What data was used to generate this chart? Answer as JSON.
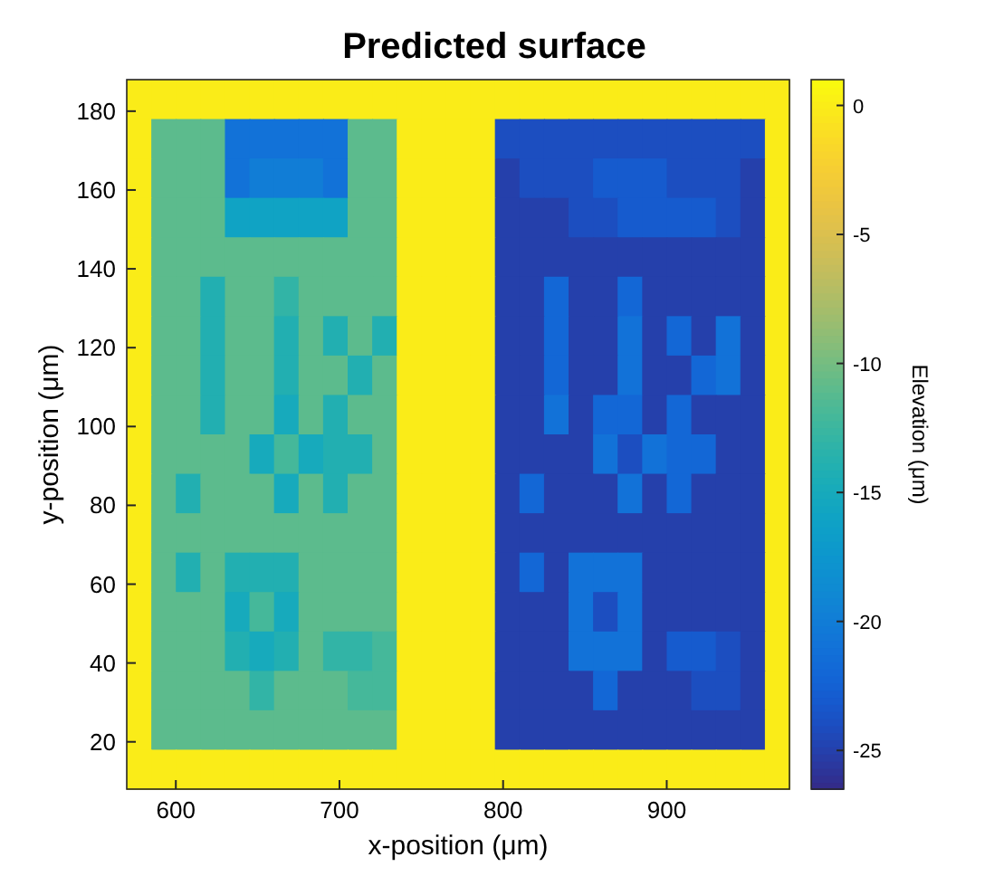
{
  "chart_data": {
    "type": "heatmap",
    "title": "Predicted surface",
    "xlabel": "x-position  (μm)",
    "ylabel": "y-position  (μm)",
    "clabel": "Elevation  (μm)",
    "xlim": [
      570,
      975
    ],
    "ylim": [
      8,
      188
    ],
    "xticks": [
      600,
      700,
      800,
      900
    ],
    "yticks": [
      20,
      40,
      60,
      80,
      100,
      120,
      140,
      160,
      180
    ],
    "clim": [
      -26.5,
      1
    ],
    "cticks": [
      0,
      -5,
      -10,
      -15,
      -20,
      -25
    ],
    "cells": [
      [
        0,
        0,
        0,
        0,
        0,
        0,
        0,
        0,
        0,
        0,
        0,
        0,
        0,
        0,
        0,
        0,
        0,
        0,
        0,
        0,
        0,
        0,
        0,
        0,
        0,
        0,
        0
      ],
      [
        0,
        -11,
        -11,
        -11,
        -21,
        -21,
        -21,
        -21,
        -21,
        -11,
        -11,
        0,
        0,
        0,
        0,
        -24,
        -24,
        -24,
        -24,
        -24,
        -24,
        -24,
        -24,
        -24,
        -24,
        -24,
        0
      ],
      [
        0,
        -11,
        -11,
        -11,
        -21,
        -20,
        -20,
        -20,
        -21,
        -11,
        -11,
        0,
        0,
        0,
        0,
        -25,
        -24,
        -24,
        -24,
        -23,
        -23,
        -23,
        -24,
        -24,
        -24,
        -25,
        0
      ],
      [
        0,
        -11,
        -11,
        -11,
        -16,
        -16,
        -16,
        -16,
        -16,
        -11,
        -11,
        0,
        0,
        0,
        0,
        -25,
        -25,
        -25,
        -24,
        -24,
        -23,
        -23,
        -23,
        -23,
        -24,
        -25,
        0
      ],
      [
        0,
        -11,
        -11,
        -11,
        -11,
        -11,
        -11,
        -11,
        -11,
        -11,
        -11,
        0,
        0,
        0,
        0,
        -25,
        -25,
        -25,
        -25,
        -25,
        -25,
        -25,
        -25,
        -25,
        -25,
        -25,
        0
      ],
      [
        0,
        -11,
        -11,
        -14,
        -11,
        -11,
        -13,
        -11,
        -11,
        -11,
        -11,
        0,
        0,
        0,
        0,
        -25,
        -25,
        -22,
        -25,
        -25,
        -22,
        -25,
        -25,
        -25,
        -25,
        -25,
        0
      ],
      [
        0,
        -11,
        -11,
        -14,
        -11,
        -11,
        -14,
        -11,
        -14,
        -11,
        -14,
        0,
        0,
        0,
        0,
        -25,
        -25,
        -22,
        -25,
        -25,
        -21,
        -25,
        -22,
        -25,
        -21,
        -25,
        0
      ],
      [
        0,
        -11,
        -11,
        -14,
        -11,
        -11,
        -14,
        -11,
        -11,
        -14,
        -11,
        0,
        0,
        0,
        0,
        -25,
        -25,
        -22,
        -25,
        -25,
        -21,
        -25,
        -25,
        -22,
        -21,
        -25,
        0
      ],
      [
        0,
        -11,
        -11,
        -14,
        -11,
        -11,
        -15,
        -11,
        -14,
        -11,
        -11,
        0,
        0,
        0,
        0,
        -25,
        -25,
        -21,
        -25,
        -22,
        -22,
        -25,
        -22,
        -25,
        -25,
        -25,
        0
      ],
      [
        0,
        -11,
        -11,
        -11,
        -11,
        -15,
        -12,
        -15,
        -14,
        -14,
        -11,
        0,
        0,
        0,
        0,
        -25,
        -25,
        -25,
        -25,
        -21,
        -24,
        -21,
        -22,
        -22,
        -25,
        -25,
        0
      ],
      [
        0,
        -11,
        -14,
        -11,
        -11,
        -11,
        -15,
        -11,
        -14,
        -11,
        -11,
        0,
        0,
        0,
        0,
        -25,
        -22,
        -25,
        -25,
        -25,
        -21,
        -25,
        -22,
        -25,
        -25,
        -25,
        0
      ],
      [
        0,
        -11,
        -11,
        -11,
        -11,
        -11,
        -11,
        -11,
        -11,
        -11,
        -11,
        0,
        0,
        0,
        0,
        -25,
        -25,
        -25,
        -25,
        -25,
        -25,
        -25,
        -25,
        -25,
        -25,
        -25,
        0
      ],
      [
        0,
        -11,
        -14,
        -11,
        -14,
        -14,
        -14,
        -11,
        -11,
        -11,
        -11,
        0,
        0,
        0,
        0,
        -25,
        -22,
        -25,
        -21,
        -21,
        -21,
        -25,
        -25,
        -25,
        -25,
        -25,
        0
      ],
      [
        0,
        -11,
        -11,
        -11,
        -15,
        -12,
        -15,
        -11,
        -11,
        -11,
        -11,
        0,
        0,
        0,
        0,
        -25,
        -25,
        -25,
        -21,
        -24,
        -21,
        -25,
        -25,
        -25,
        -25,
        -25,
        0
      ],
      [
        0,
        -11,
        -11,
        -11,
        -14,
        -15,
        -14,
        -11,
        -13,
        -13,
        -12,
        0,
        0,
        0,
        0,
        -25,
        -25,
        -25,
        -21,
        -21,
        -21,
        -25,
        -23,
        -23,
        -24,
        -25,
        0
      ],
      [
        0,
        -11,
        -11,
        -11,
        -11,
        -13,
        -11,
        -11,
        -11,
        -12,
        -12,
        0,
        0,
        0,
        0,
        -25,
        -25,
        -25,
        -25,
        -22,
        -25,
        -25,
        -25,
        -24,
        -24,
        -25,
        0
      ],
      [
        0,
        -11,
        -11,
        -11,
        -11,
        -11,
        -11,
        -11,
        -11,
        -11,
        -11,
        0,
        0,
        0,
        0,
        -25,
        -25,
        -25,
        -25,
        -25,
        -25,
        -25,
        -25,
        -25,
        -25,
        -25,
        0
      ],
      [
        0,
        0,
        0,
        0,
        0,
        0,
        0,
        0,
        0,
        0,
        0,
        0,
        0,
        0,
        0,
        0,
        0,
        0,
        0,
        0,
        0,
        0,
        0,
        0,
        0,
        0,
        0
      ]
    ]
  }
}
